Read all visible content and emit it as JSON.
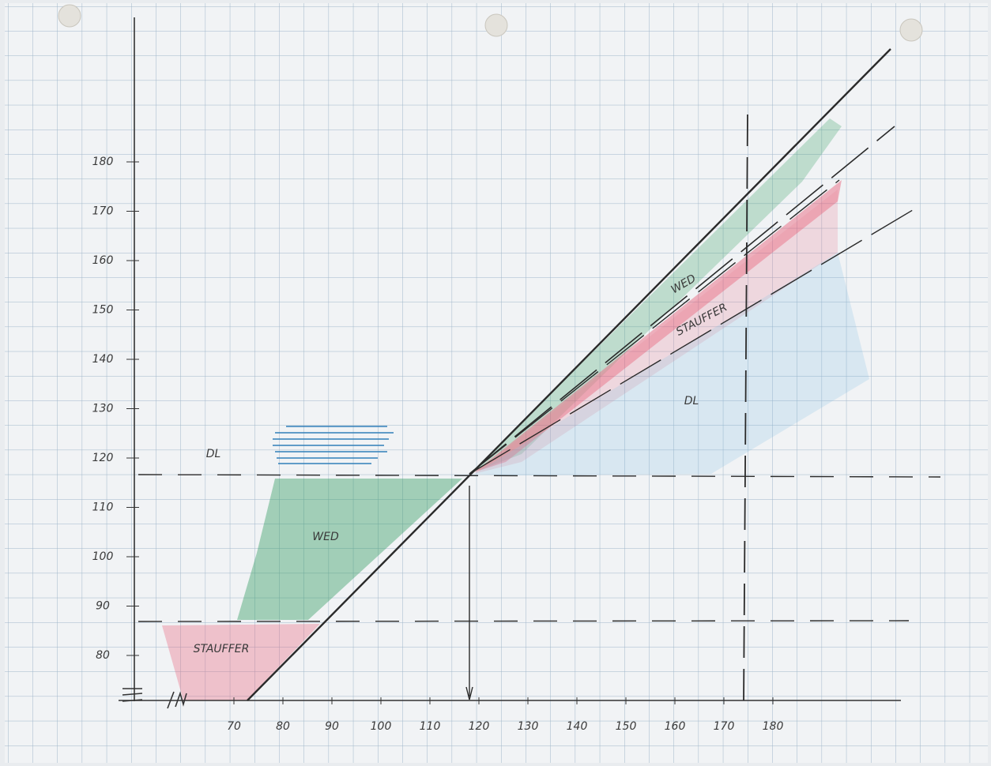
{
  "x_axis": {
    "ticks": [
      "70",
      "80",
      "90",
      "100",
      "110",
      "120",
      "130",
      "140",
      "150",
      "160",
      "170",
      "180"
    ]
  },
  "y_axis": {
    "ticks": [
      "180",
      "170",
      "160",
      "150",
      "140",
      "130",
      "120",
      "110",
      "100",
      "90",
      "80"
    ]
  },
  "region_labels": [
    "DL",
    "WED",
    "STAUFFER",
    "WED",
    "STAUFFER",
    "DL"
  ]
}
